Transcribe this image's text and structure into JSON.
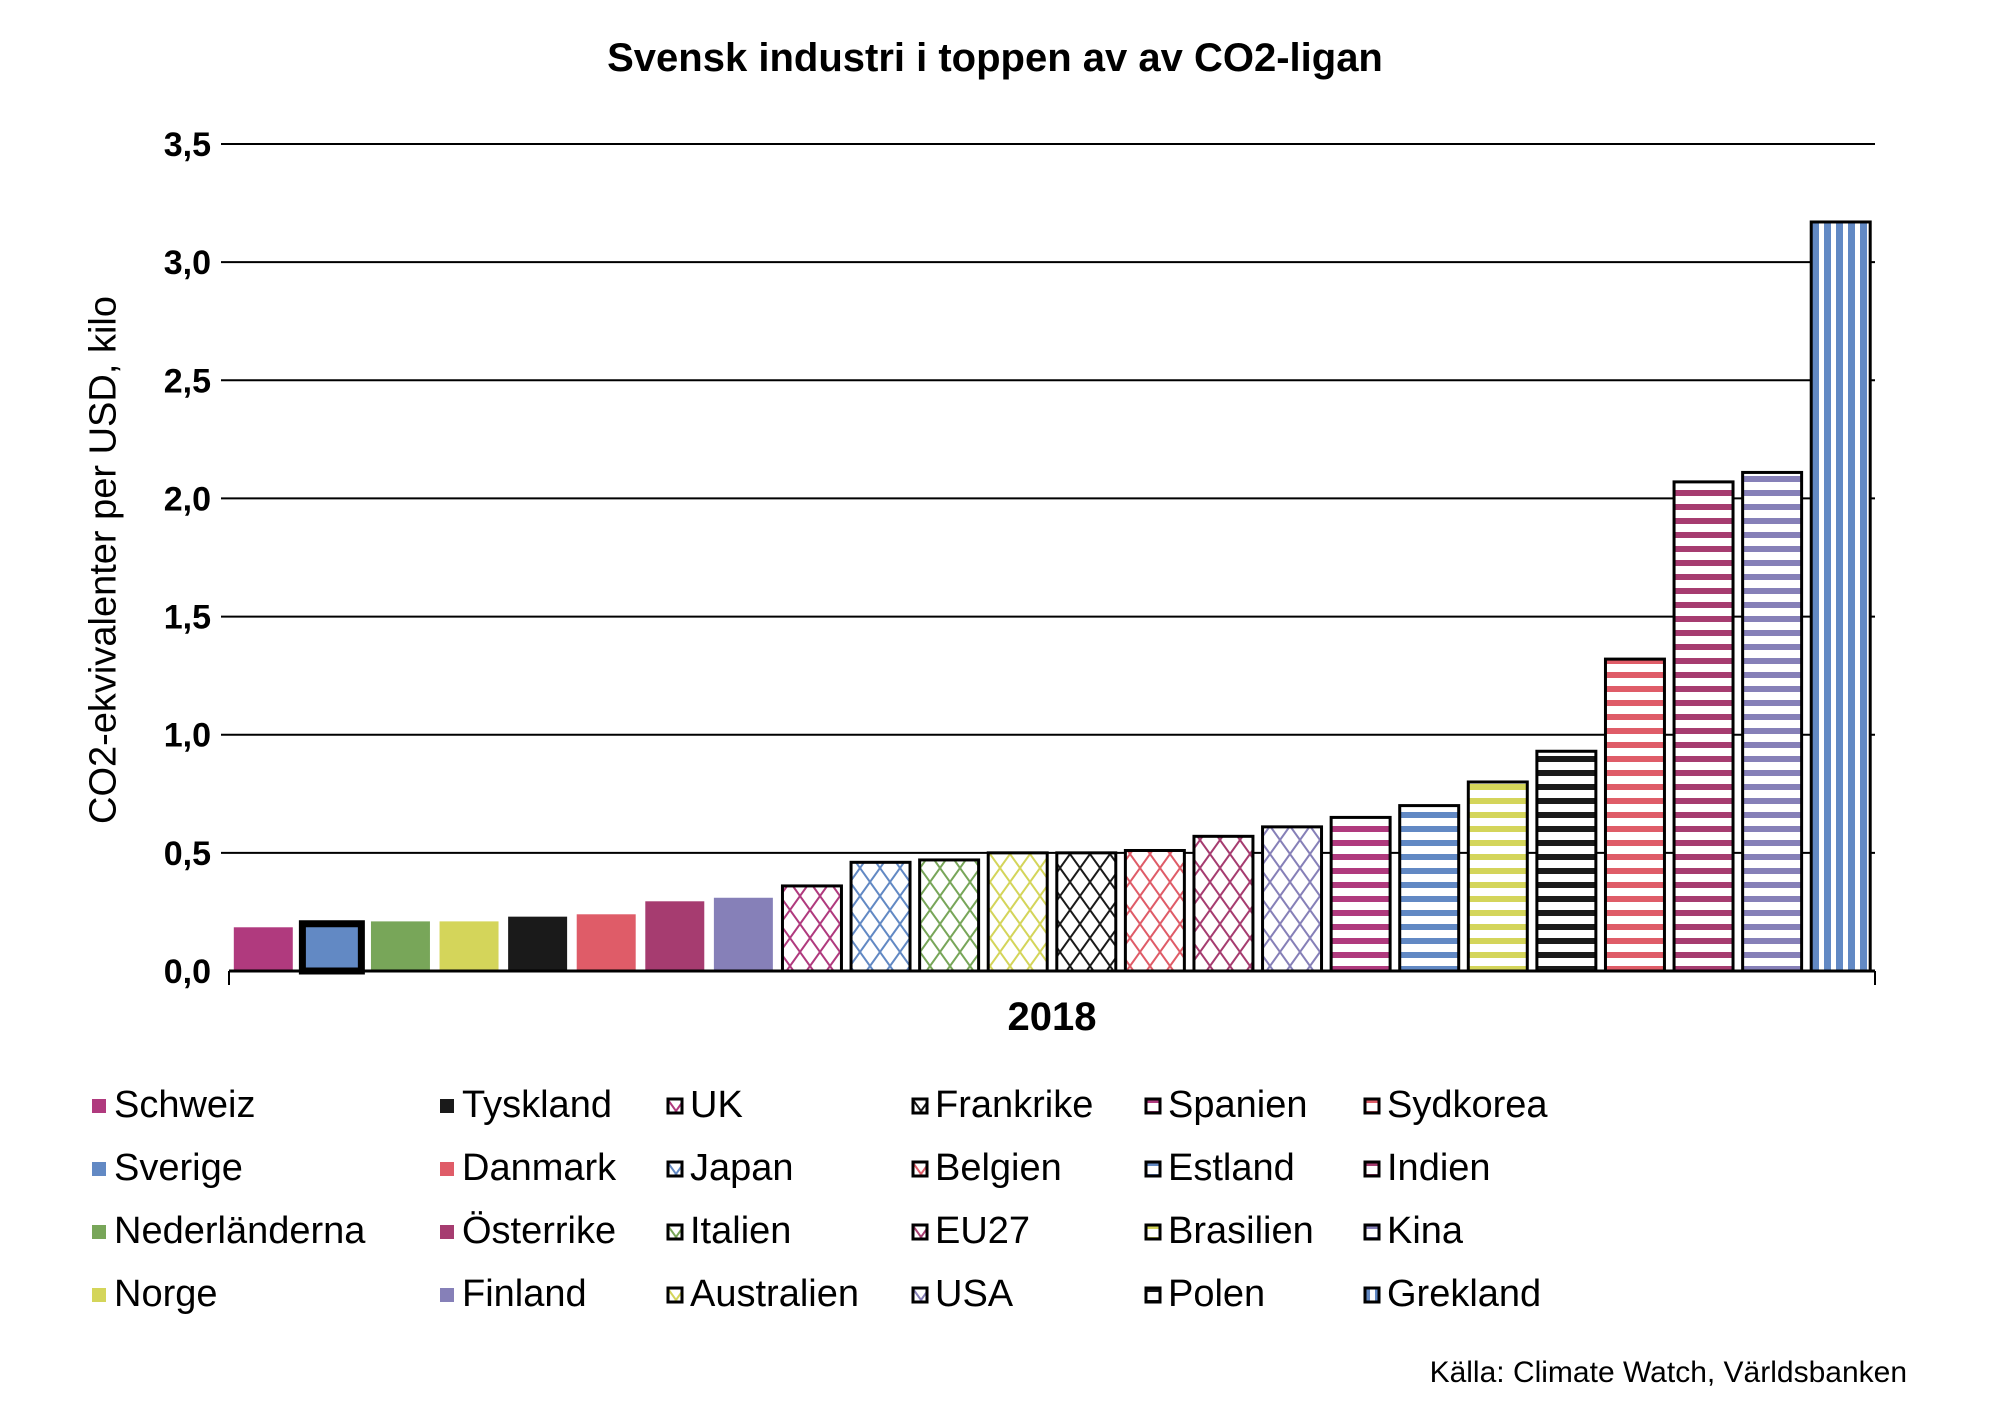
{
  "chart_data": {
    "type": "bar",
    "title": "Svensk industri i toppen av av CO2-ligan",
    "xlabel": "2018",
    "ylabel": "CO2-ekvivalenter per USD, kilo",
    "ylim": [
      0,
      3.5
    ],
    "yticks": [
      "0,0",
      "0,5",
      "1,0",
      "1,5",
      "2,0",
      "2,5",
      "3,0",
      "3,5"
    ],
    "grid": true,
    "legend_position": "bottom",
    "source": "Källa: Climate Watch, Världsbanken",
    "series": [
      {
        "name": "Schweiz",
        "value": 0.185,
        "color": "#b03a7e",
        "pattern": "solid"
      },
      {
        "name": "Sverige",
        "value": 0.2,
        "color": "#6289c4",
        "pattern": "solid-bold"
      },
      {
        "name": "Nederländerna",
        "value": 0.21,
        "color": "#78a659",
        "pattern": "solid"
      },
      {
        "name": "Norge",
        "value": 0.21,
        "color": "#d4d55a",
        "pattern": "solid"
      },
      {
        "name": "Tyskland",
        "value": 0.23,
        "color": "#1a1a1a",
        "pattern": "solid"
      },
      {
        "name": "Danmark",
        "value": 0.24,
        "color": "#df5c68",
        "pattern": "solid"
      },
      {
        "name": "Österrike",
        "value": 0.295,
        "color": "#a63c70",
        "pattern": "solid"
      },
      {
        "name": "Finland",
        "value": 0.31,
        "color": "#8680b8",
        "pattern": "solid"
      },
      {
        "name": "UK",
        "value": 0.36,
        "color": "#b03a7e",
        "pattern": "diamond"
      },
      {
        "name": "Japan",
        "value": 0.46,
        "color": "#6289c4",
        "pattern": "diamond"
      },
      {
        "name": "Italien",
        "value": 0.47,
        "color": "#78a659",
        "pattern": "diamond"
      },
      {
        "name": "Australien",
        "value": 0.5,
        "color": "#d4d55a",
        "pattern": "diamond"
      },
      {
        "name": "Frankrike",
        "value": 0.5,
        "color": "#1a1a1a",
        "pattern": "diamond"
      },
      {
        "name": "Belgien",
        "value": 0.51,
        "color": "#df5c68",
        "pattern": "diamond"
      },
      {
        "name": "EU27",
        "value": 0.57,
        "color": "#a63c70",
        "pattern": "diamond"
      },
      {
        "name": "USA",
        "value": 0.61,
        "color": "#8680b8",
        "pattern": "diamond"
      },
      {
        "name": "Spanien",
        "value": 0.65,
        "color": "#b03a7e",
        "pattern": "hstripe"
      },
      {
        "name": "Estland",
        "value": 0.7,
        "color": "#6289c4",
        "pattern": "hstripe"
      },
      {
        "name": "Brasilien",
        "value": 0.8,
        "color": "#d4d55a",
        "pattern": "hstripe"
      },
      {
        "name": "Polen",
        "value": 0.93,
        "color": "#1a1a1a",
        "pattern": "hstripe"
      },
      {
        "name": "Sydkorea",
        "value": 1.32,
        "color": "#df5c68",
        "pattern": "hstripe"
      },
      {
        "name": "Indien",
        "value": 2.07,
        "color": "#a63c70",
        "pattern": "hstripe"
      },
      {
        "name": "Kina",
        "value": 2.11,
        "color": "#8680b8",
        "pattern": "hstripe"
      },
      {
        "name": "Grekland",
        "value": 3.17,
        "color": "#6289c4",
        "pattern": "vstripe"
      }
    ]
  }
}
